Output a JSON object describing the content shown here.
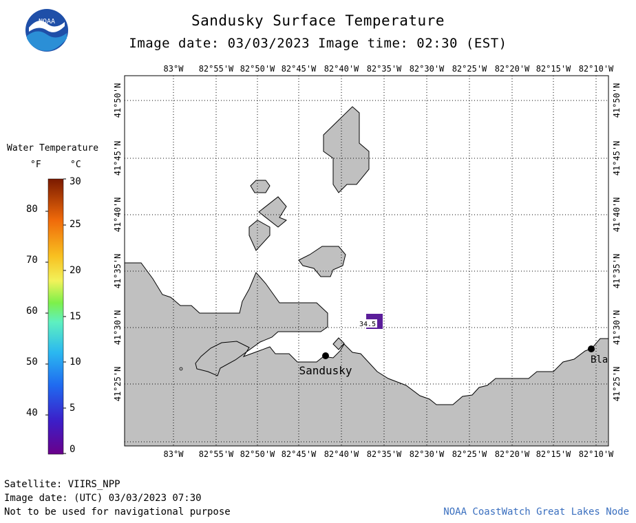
{
  "title": "Sandusky Surface Temperature",
  "subtitle": "Image date: 03/03/2023     Image time: 02:30 (EST)",
  "logo_text": "NOAA",
  "legend": {
    "title": "Water Temperature",
    "unit_f": "°F",
    "unit_c": "°C",
    "f_ticks": [
      "80",
      "70",
      "60",
      "50",
      "40"
    ],
    "c_ticks": [
      "30",
      "25",
      "20",
      "15",
      "10",
      "5",
      "0"
    ]
  },
  "map": {
    "lon_labels": [
      "83°W",
      "82°55'W",
      "82°50'W",
      "82°45'W",
      "82°40'W",
      "82°35'W",
      "82°30'W",
      "82°25'W",
      "82°20'W",
      "82°15'W",
      "82°10'W"
    ],
    "lat_labels": [
      "41°50'N",
      "41°45'N",
      "41°40'N",
      "41°35'N",
      "41°30'N",
      "41°25'N"
    ],
    "temperature_label": "34.5",
    "temperature_value_f": 34.5,
    "cities": [
      {
        "name": "Sandusky"
      },
      {
        "name": "Bla"
      }
    ],
    "colors": {
      "land": "#c0c0c0",
      "water": "#ffffff",
      "temp_cell": "#5b1e9a"
    }
  },
  "footer": {
    "satellite": "Satellite: VIIRS_NPP",
    "utc_date": "Image date: (UTC) 03/03/2023  07:30",
    "disclaimer": "Not to be used for navigational purpose",
    "credit": "NOAA CoastWatch Great Lakes Node"
  }
}
